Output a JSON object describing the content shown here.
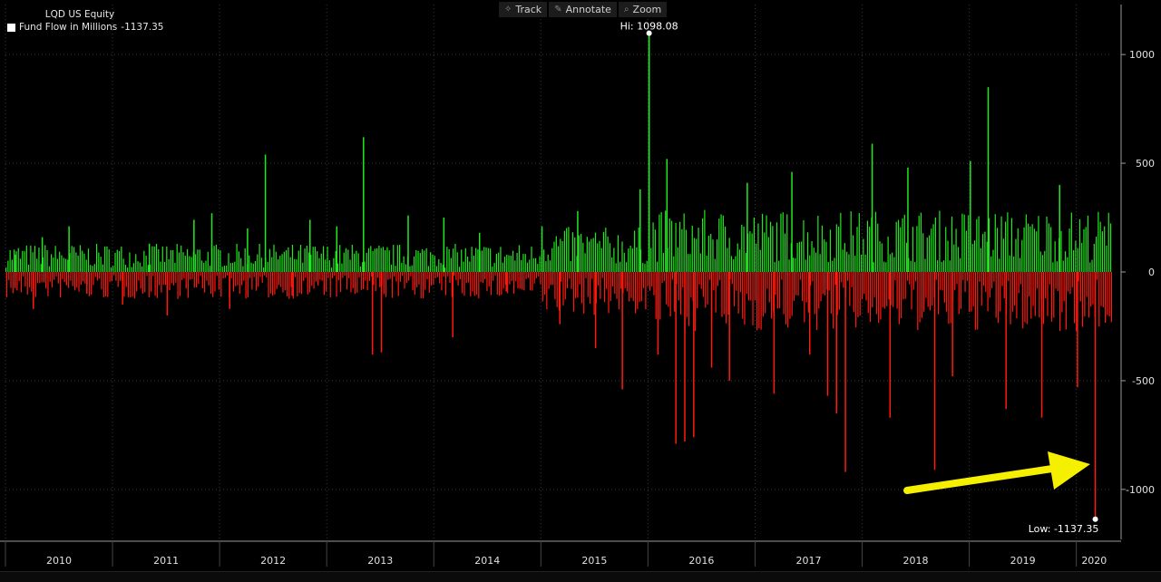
{
  "toolbar": {
    "track": "Track",
    "annotate": "Annotate",
    "zoom": "Zoom"
  },
  "legend": {
    "title": "LQD US Equity",
    "series_label": "Fund Flow in Millions",
    "last_value": "-1137.35"
  },
  "colors": {
    "positive": "#22e81f",
    "negative": "#ff1a0d",
    "background": "#000000",
    "arrow": "#f5f000",
    "grid": "#3a3a3a"
  },
  "annotations": {
    "hi_label": "Hi: 1098.08",
    "low_label": "Low: -1137.35"
  },
  "chart_data": {
    "type": "bar",
    "title": "LQD US Equity",
    "series_name": "Fund Flow in Millions",
    "ylim": [
      -1230,
      1230
    ],
    "y_ticks": [
      1000,
      500,
      0,
      -500,
      -1000
    ],
    "x_ticks": [
      "2010",
      "2011",
      "2012",
      "2013",
      "2014",
      "2015",
      "2016",
      "2017",
      "2018",
      "2019",
      "2020"
    ],
    "grid": true,
    "hi": {
      "label_value": 1098.08,
      "date": "2016-01"
    },
    "low": {
      "label_value": -1137.35,
      "date": "2020-03"
    },
    "points": [
      {
        "date": "2010-02",
        "value": 80
      },
      {
        "date": "2010-04",
        "value": -170
      },
      {
        "date": "2010-05",
        "value": 160
      },
      {
        "date": "2010-08",
        "value": 210
      },
      {
        "date": "2010-10",
        "value": -100
      },
      {
        "date": "2011-02",
        "value": -150
      },
      {
        "date": "2011-05",
        "value": 130
      },
      {
        "date": "2011-07",
        "value": -200
      },
      {
        "date": "2011-10",
        "value": 240
      },
      {
        "date": "2011-12",
        "value": 270
      },
      {
        "date": "2012-02",
        "value": -170
      },
      {
        "date": "2012-04",
        "value": 200
      },
      {
        "date": "2012-06",
        "value": 540
      },
      {
        "date": "2012-09",
        "value": -110
      },
      {
        "date": "2012-11",
        "value": 240
      },
      {
        "date": "2013-02",
        "value": 210
      },
      {
        "date": "2013-05",
        "value": 620
      },
      {
        "date": "2013-06",
        "value": -380
      },
      {
        "date": "2013-07",
        "value": -370
      },
      {
        "date": "2013-10",
        "value": 260
      },
      {
        "date": "2014-02",
        "value": 250
      },
      {
        "date": "2014-03",
        "value": -300
      },
      {
        "date": "2014-06",
        "value": 180
      },
      {
        "date": "2014-09",
        "value": -90
      },
      {
        "date": "2015-01",
        "value": 210
      },
      {
        "date": "2015-03",
        "value": -240
      },
      {
        "date": "2015-05",
        "value": 280
      },
      {
        "date": "2015-07",
        "value": -350
      },
      {
        "date": "2015-10",
        "value": -540
      },
      {
        "date": "2015-12",
        "value": 380
      },
      {
        "date": "2016-01",
        "value": 1098.08
      },
      {
        "date": "2016-02",
        "value": -380
      },
      {
        "date": "2016-03",
        "value": 520
      },
      {
        "date": "2016-04",
        "value": -790
      },
      {
        "date": "2016-05",
        "value": -780
      },
      {
        "date": "2016-06",
        "value": -760
      },
      {
        "date": "2016-08",
        "value": -440
      },
      {
        "date": "2016-10",
        "value": -500
      },
      {
        "date": "2016-12",
        "value": 410
      },
      {
        "date": "2017-03",
        "value": -560
      },
      {
        "date": "2017-05",
        "value": 460
      },
      {
        "date": "2017-07",
        "value": -380
      },
      {
        "date": "2017-09",
        "value": -570
      },
      {
        "date": "2017-10",
        "value": -650
      },
      {
        "date": "2017-11",
        "value": -920
      },
      {
        "date": "2018-02",
        "value": 590
      },
      {
        "date": "2018-04",
        "value": -670
      },
      {
        "date": "2018-06",
        "value": 480
      },
      {
        "date": "2018-09",
        "value": -910
      },
      {
        "date": "2018-11",
        "value": -480
      },
      {
        "date": "2019-01",
        "value": 510
      },
      {
        "date": "2019-03",
        "value": 850
      },
      {
        "date": "2019-05",
        "value": -630
      },
      {
        "date": "2019-09",
        "value": -670
      },
      {
        "date": "2019-11",
        "value": 400
      },
      {
        "date": "2020-01",
        "value": -530
      },
      {
        "date": "2020-03",
        "value": -1137.35
      }
    ]
  }
}
